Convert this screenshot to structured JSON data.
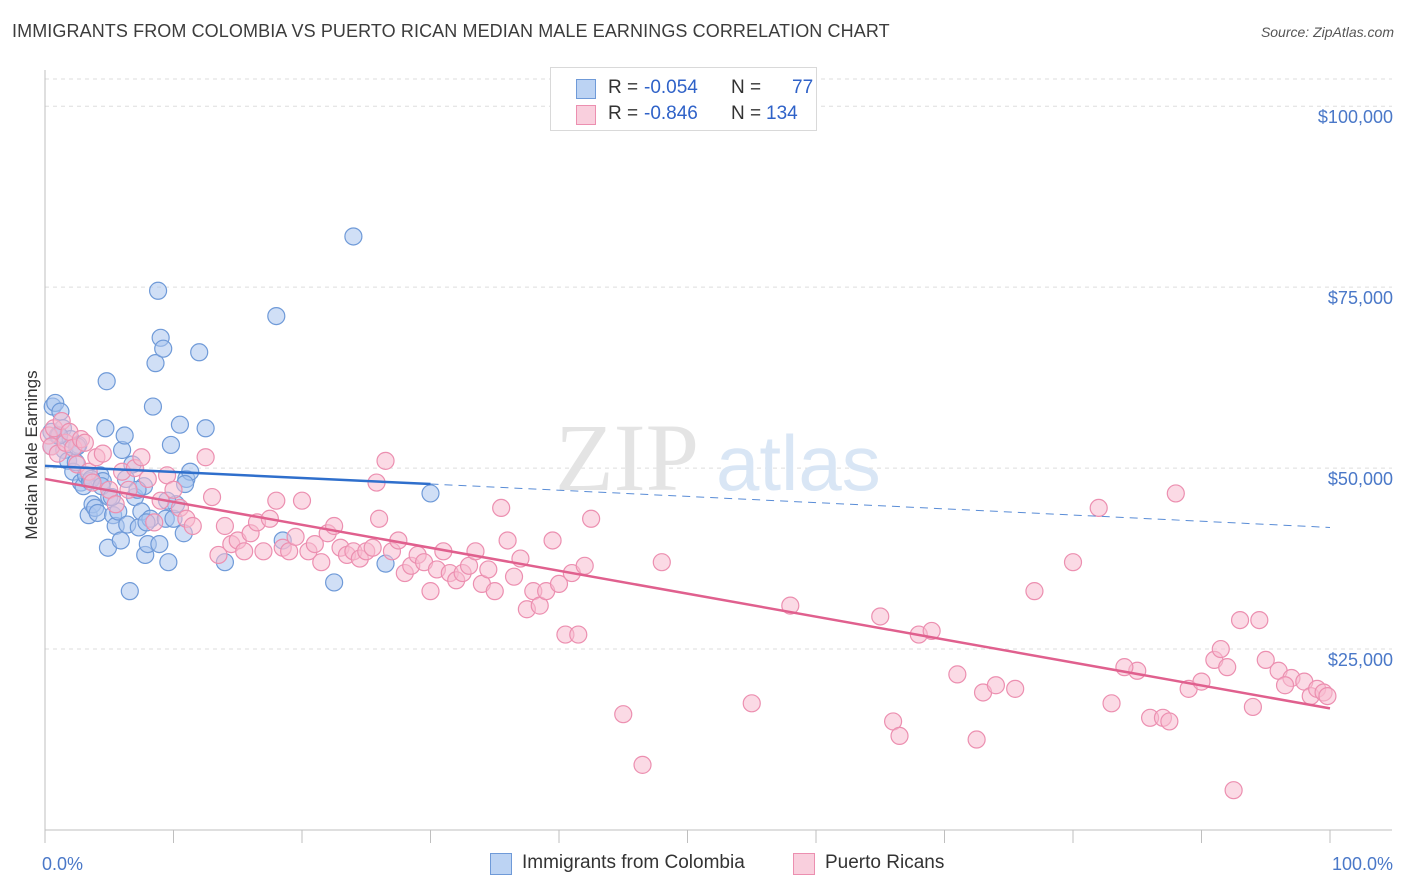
{
  "title": "IMMIGRANTS FROM COLOMBIA VS PUERTO RICAN MEDIAN MALE EARNINGS CORRELATION CHART",
  "source": "Source: ZipAtlas.com",
  "watermark": {
    "zip": "ZIP",
    "atlas": "atlas"
  },
  "legend": {
    "rows": [
      {
        "r_label": "R =",
        "r_value": "-0.054",
        "n_label": "N =",
        "n_value": "77"
      },
      {
        "r_label": "R =",
        "r_value": "-0.846",
        "n_label": "N =",
        "n_value": "134"
      }
    ]
  },
  "bottom_legend": {
    "series1": "Immigrants from Colombia",
    "series2": "Puerto Ricans"
  },
  "colors": {
    "blue_fill": "#a9c5ee",
    "blue_stroke": "#6f9ad8",
    "blue_line": "#2f6fcc",
    "pink_fill": "#f7bcd0",
    "pink_stroke": "#ec8fb0",
    "pink_line": "#e0608e",
    "tick_text": "#4a78c8",
    "grid": "#dddddd"
  },
  "chart_data": {
    "type": "scatter",
    "title": "IMMIGRANTS FROM COLOMBIA VS PUERTO RICAN MEDIAN MALE EARNINGS CORRELATION CHART",
    "xlabel": "",
    "ylabel": "Median Male Earnings",
    "xlim": [
      0,
      100
    ],
    "ylim": [
      0,
      105000
    ],
    "x_tick_labels": [
      "0.0%",
      "100.0%"
    ],
    "y_ticks": [
      25000,
      50000,
      75000,
      100000
    ],
    "y_tick_labels": [
      "$25,000",
      "$50,000",
      "$75,000",
      "$100,000"
    ],
    "series": [
      {
        "name": "Immigrants from Colombia",
        "R": -0.054,
        "N": 77,
        "trend": {
          "x_solid": [
            0,
            30
          ],
          "y_solid": [
            50300,
            47800
          ],
          "x_dash": [
            30,
            100
          ],
          "y_dash": [
            47800,
            41800
          ]
        },
        "points": [
          [
            0.5,
            55000
          ],
          [
            0.5,
            53000
          ],
          [
            0.6,
            58500
          ],
          [
            0.8,
            59000
          ],
          [
            1.0,
            54500
          ],
          [
            1.2,
            57800
          ],
          [
            1.4,
            55500
          ],
          [
            1.5,
            52500
          ],
          [
            1.8,
            51000
          ],
          [
            2.0,
            54000
          ],
          [
            2.2,
            49500
          ],
          [
            2.4,
            50800
          ],
          [
            2.6,
            53200
          ],
          [
            2.8,
            48000
          ],
          [
            3.0,
            47500
          ],
          [
            3.2,
            49000
          ],
          [
            3.4,
            43500
          ],
          [
            3.5,
            48200
          ],
          [
            3.7,
            45000
          ],
          [
            3.9,
            44500
          ],
          [
            4.1,
            43800
          ],
          [
            4.3,
            49000
          ],
          [
            4.5,
            48200
          ],
          [
            4.7,
            55500
          ],
          [
            4.8,
            62000
          ],
          [
            4.9,
            39000
          ],
          [
            5.0,
            46000
          ],
          [
            5.3,
            43500
          ],
          [
            5.5,
            42000
          ],
          [
            5.7,
            44000
          ],
          [
            5.9,
            40000
          ],
          [
            6.0,
            52500
          ],
          [
            6.2,
            54500
          ],
          [
            6.4,
            42200
          ],
          [
            6.6,
            33000
          ],
          [
            6.8,
            50500
          ],
          [
            7.0,
            46000
          ],
          [
            7.3,
            41800
          ],
          [
            7.5,
            44000
          ],
          [
            7.7,
            47500
          ],
          [
            7.8,
            38000
          ],
          [
            8.0,
            39500
          ],
          [
            8.2,
            43000
          ],
          [
            8.4,
            58500
          ],
          [
            8.6,
            64500
          ],
          [
            8.8,
            74500
          ],
          [
            9.0,
            68000
          ],
          [
            9.2,
            66500
          ],
          [
            9.4,
            43000
          ],
          [
            9.6,
            37000
          ],
          [
            9.8,
            53200
          ],
          [
            10.0,
            43000
          ],
          [
            10.2,
            45000
          ],
          [
            10.5,
            56000
          ],
          [
            10.8,
            41000
          ],
          [
            11.0,
            48500
          ],
          [
            11.3,
            49500
          ],
          [
            12.0,
            66000
          ],
          [
            12.5,
            55500
          ],
          [
            14.0,
            37000
          ],
          [
            18.0,
            71000
          ],
          [
            18.5,
            40000
          ],
          [
            22.5,
            34200
          ],
          [
            24.0,
            82000
          ],
          [
            26.5,
            36800
          ],
          [
            30.0,
            46500
          ],
          [
            1.1,
            54500
          ],
          [
            2.5,
            53000
          ],
          [
            3.6,
            48500
          ],
          [
            4.4,
            47500
          ],
          [
            5.2,
            46000
          ],
          [
            6.3,
            48500
          ],
          [
            7.2,
            47000
          ],
          [
            8.9,
            39500
          ],
          [
            10.9,
            47800
          ],
          [
            7.9,
            42500
          ],
          [
            9.5,
            45500
          ]
        ]
      },
      {
        "name": "Puerto Ricans",
        "R": -0.846,
        "N": 134,
        "trend": {
          "x": [
            0,
            100
          ],
          "y": [
            48500,
            16800
          ]
        },
        "points": [
          [
            0.3,
            54500
          ],
          [
            0.5,
            53000
          ],
          [
            0.7,
            55500
          ],
          [
            1.0,
            52000
          ],
          [
            1.3,
            56500
          ],
          [
            1.6,
            53500
          ],
          [
            1.9,
            55000
          ],
          [
            2.2,
            52800
          ],
          [
            2.5,
            50500
          ],
          [
            2.8,
            54000
          ],
          [
            3.1,
            53500
          ],
          [
            3.4,
            49500
          ],
          [
            3.7,
            48000
          ],
          [
            4.0,
            51500
          ],
          [
            4.5,
            52000
          ],
          [
            5.0,
            47000
          ],
          [
            5.5,
            45000
          ],
          [
            6.0,
            49500
          ],
          [
            6.5,
            47000
          ],
          [
            7.0,
            50000
          ],
          [
            7.5,
            51500
          ],
          [
            8.0,
            48500
          ],
          [
            8.5,
            42500
          ],
          [
            9.0,
            45500
          ],
          [
            9.5,
            49000
          ],
          [
            10.0,
            47000
          ],
          [
            10.5,
            44500
          ],
          [
            11.0,
            43000
          ],
          [
            11.5,
            42000
          ],
          [
            12.5,
            51500
          ],
          [
            13.0,
            46000
          ],
          [
            13.5,
            38000
          ],
          [
            14.0,
            42000
          ],
          [
            14.5,
            39500
          ],
          [
            15.0,
            40000
          ],
          [
            15.5,
            38500
          ],
          [
            16.0,
            41000
          ],
          [
            16.5,
            42500
          ],
          [
            17.0,
            38500
          ],
          [
            17.5,
            43000
          ],
          [
            18.0,
            45500
          ],
          [
            18.5,
            39000
          ],
          [
            19.0,
            38500
          ],
          [
            19.5,
            40500
          ],
          [
            20.0,
            45500
          ],
          [
            20.5,
            38500
          ],
          [
            21.0,
            39500
          ],
          [
            21.5,
            37000
          ],
          [
            22.0,
            41000
          ],
          [
            22.5,
            42000
          ],
          [
            23.0,
            39000
          ],
          [
            23.5,
            38000
          ],
          [
            24.0,
            38500
          ],
          [
            24.5,
            37500
          ],
          [
            25.0,
            38500
          ],
          [
            25.5,
            39000
          ],
          [
            25.8,
            48000
          ],
          [
            26.0,
            43000
          ],
          [
            26.5,
            51000
          ],
          [
            27.0,
            38500
          ],
          [
            27.5,
            40000
          ],
          [
            28.0,
            35500
          ],
          [
            28.5,
            36500
          ],
          [
            29.0,
            38000
          ],
          [
            29.5,
            37000
          ],
          [
            30.0,
            33000
          ],
          [
            30.5,
            36000
          ],
          [
            31.0,
            38500
          ],
          [
            31.5,
            35500
          ],
          [
            32.0,
            34500
          ],
          [
            32.5,
            35500
          ],
          [
            33.0,
            36500
          ],
          [
            33.5,
            38500
          ],
          [
            34.0,
            34000
          ],
          [
            34.5,
            36000
          ],
          [
            35.0,
            33000
          ],
          [
            35.5,
            44500
          ],
          [
            36.0,
            40000
          ],
          [
            36.5,
            35000
          ],
          [
            37.0,
            37500
          ],
          [
            37.5,
            30500
          ],
          [
            38.0,
            33000
          ],
          [
            38.5,
            31000
          ],
          [
            39.0,
            33000
          ],
          [
            39.5,
            40000
          ],
          [
            40.0,
            34000
          ],
          [
            40.5,
            27000
          ],
          [
            41.0,
            35500
          ],
          [
            41.5,
            27000
          ],
          [
            42.0,
            36500
          ],
          [
            42.5,
            43000
          ],
          [
            45.0,
            16000
          ],
          [
            46.5,
            9000
          ],
          [
            48.0,
            37000
          ],
          [
            55.0,
            17500
          ],
          [
            58.0,
            31000
          ],
          [
            65.0,
            29500
          ],
          [
            66.0,
            15000
          ],
          [
            66.5,
            13000
          ],
          [
            68.0,
            27000
          ],
          [
            69.0,
            27500
          ],
          [
            71.0,
            21500
          ],
          [
            72.5,
            12500
          ],
          [
            73.0,
            19000
          ],
          [
            74.0,
            20000
          ],
          [
            75.5,
            19500
          ],
          [
            77.0,
            33000
          ],
          [
            80.0,
            37000
          ],
          [
            82.0,
            44500
          ],
          [
            83.0,
            17500
          ],
          [
            85.0,
            22000
          ],
          [
            86.0,
            15500
          ],
          [
            87.0,
            15500
          ],
          [
            88.0,
            46500
          ],
          [
            89.0,
            19500
          ],
          [
            90.0,
            20500
          ],
          [
            91.0,
            23500
          ],
          [
            92.0,
            22500
          ],
          [
            93.0,
            29000
          ],
          [
            94.0,
            17000
          ],
          [
            95.0,
            23500
          ],
          [
            96.0,
            22000
          ],
          [
            97.0,
            21000
          ],
          [
            98.0,
            20500
          ],
          [
            98.5,
            18500
          ],
          [
            99.0,
            19500
          ],
          [
            99.5,
            19000
          ],
          [
            99.8,
            18500
          ],
          [
            92.5,
            5500
          ],
          [
            87.5,
            15000
          ],
          [
            91.5,
            25000
          ],
          [
            94.5,
            29000
          ],
          [
            96.5,
            20000
          ],
          [
            84.0,
            22500
          ]
        ]
      }
    ]
  }
}
